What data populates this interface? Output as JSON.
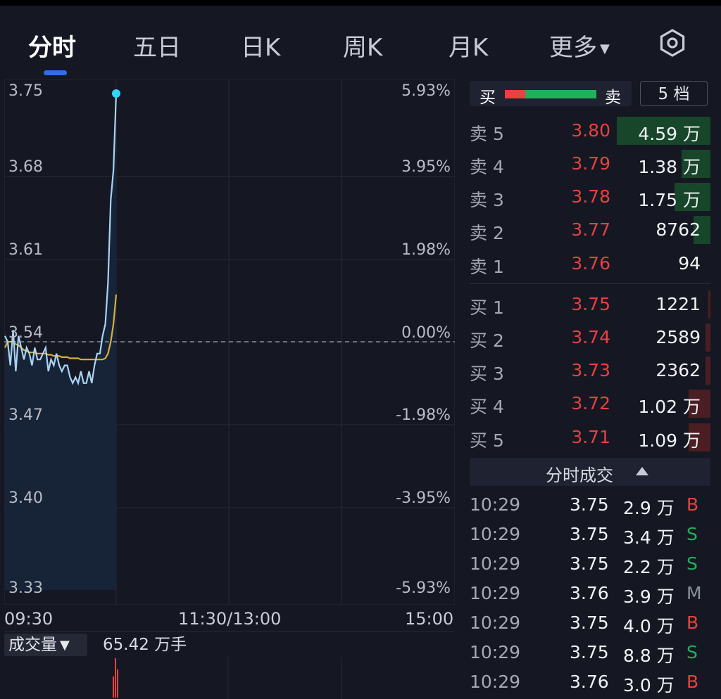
{
  "tabs": [
    {
      "label": "分时",
      "active": true
    },
    {
      "label": "五日",
      "active": false
    },
    {
      "label": "日K",
      "active": false
    },
    {
      "label": "周K",
      "active": false
    },
    {
      "label": "月K",
      "active": false
    },
    {
      "label": "更多",
      "active": false
    }
  ],
  "settings_icon": "gear-icon",
  "chart": {
    "prices": [
      "3.75",
      "3.68",
      "3.61",
      "3.54",
      "3.47",
      "3.40",
      "3.33"
    ],
    "percents": [
      "5.93%",
      "3.95%",
      "1.98%",
      "0.00%",
      "-1.98%",
      "-3.95%",
      "-5.93%"
    ],
    "x_labels": [
      "09:30",
      "11:30/13:00",
      "15:00"
    ],
    "colors": {
      "price_line": "#a9d3f2",
      "avg_line": "#d7b03a",
      "last_dot": "#2fd7f5",
      "baseline": "#8a8f9c"
    }
  },
  "chart_data": {
    "type": "line",
    "series": [
      {
        "name": "",
        "values": [
          3.545,
          3.54,
          3.52,
          3.55,
          3.515,
          3.545,
          3.535,
          3.525,
          3.535,
          3.53,
          3.52,
          3.535,
          3.525,
          3.525,
          3.53,
          3.535,
          3.515,
          3.525,
          3.52,
          3.53,
          3.52,
          3.515,
          3.52,
          3.52,
          3.51,
          3.505,
          3.51,
          3.505,
          3.515,
          3.505,
          3.505,
          3.515,
          3.505,
          3.52,
          3.53,
          3.53,
          3.545,
          3.555,
          3.59,
          3.66,
          3.685,
          3.75
        ]
      },
      {
        "name": "",
        "values": [
          3.535,
          3.54,
          3.54,
          3.54,
          3.538,
          3.537,
          3.535,
          3.533,
          3.532,
          3.531,
          3.531,
          3.531,
          3.53,
          3.53,
          3.53,
          3.53,
          3.529,
          3.529,
          3.528,
          3.528,
          3.528,
          3.527,
          3.527,
          3.527,
          3.526,
          3.526,
          3.526,
          3.526,
          3.525,
          3.525,
          3.525,
          3.525,
          3.525,
          3.525,
          3.525,
          3.525,
          3.525,
          3.526,
          3.53,
          3.54,
          3.555,
          3.58
        ]
      }
    ],
    "ylim": [
      3.33,
      3.75
    ],
    "prev_close": 3.54
  },
  "volume": {
    "selector_label": "成交量",
    "value_label": "65.42 万手"
  },
  "order_book": {
    "ratio": {
      "left": "买",
      "right": "卖",
      "red_fraction": 0.22
    },
    "level_button": "5 档",
    "asks": [
      {
        "name": "卖 5",
        "price": "3.80",
        "qty": "4.59 万",
        "bar_fraction": 0.39
      },
      {
        "name": "卖 4",
        "price": "3.79",
        "qty": "1.38 万",
        "bar_fraction": 0.12
      },
      {
        "name": "卖 3",
        "price": "3.78",
        "qty": "1.75 万",
        "bar_fraction": 0.15
      },
      {
        "name": "卖 2",
        "price": "3.77",
        "qty": "8762",
        "bar_fraction": 0.07
      },
      {
        "name": "卖 1",
        "price": "3.76",
        "qty": "94",
        "bar_fraction": 0.0
      }
    ],
    "bids": [
      {
        "name": "买 1",
        "price": "3.75",
        "qty": "1221",
        "bar_fraction": 0.01
      },
      {
        "name": "买 2",
        "price": "3.74",
        "qty": "2589",
        "bar_fraction": 0.02
      },
      {
        "name": "买 3",
        "price": "3.73",
        "qty": "2362",
        "bar_fraction": 0.02
      },
      {
        "name": "买 4",
        "price": "3.72",
        "qty": "1.02 万",
        "bar_fraction": 0.09
      },
      {
        "name": "买 5",
        "price": "3.71",
        "qty": "1.09 万",
        "bar_fraction": 0.09
      }
    ]
  },
  "ticks": {
    "header": "分时成交",
    "rows": [
      {
        "time": "10:29",
        "price": "3.75",
        "vol": "2.9 万",
        "dir": "B"
      },
      {
        "time": "10:29",
        "price": "3.75",
        "vol": "3.4 万",
        "dir": "S"
      },
      {
        "time": "10:29",
        "price": "3.75",
        "vol": "2.2 万",
        "dir": "S"
      },
      {
        "time": "10:29",
        "price": "3.76",
        "vol": "3.9 万",
        "dir": "M"
      },
      {
        "time": "10:29",
        "price": "3.75",
        "vol": "4.0 万",
        "dir": "B"
      },
      {
        "time": "10:29",
        "price": "3.75",
        "vol": "8.8 万",
        "dir": "S"
      },
      {
        "time": "10:29",
        "price": "3.76",
        "vol": "3.0 万",
        "dir": "B"
      }
    ],
    "dir_colors": {
      "B": "#e6413f",
      "S": "#1fb15a",
      "M": "#8a8f9c"
    }
  }
}
